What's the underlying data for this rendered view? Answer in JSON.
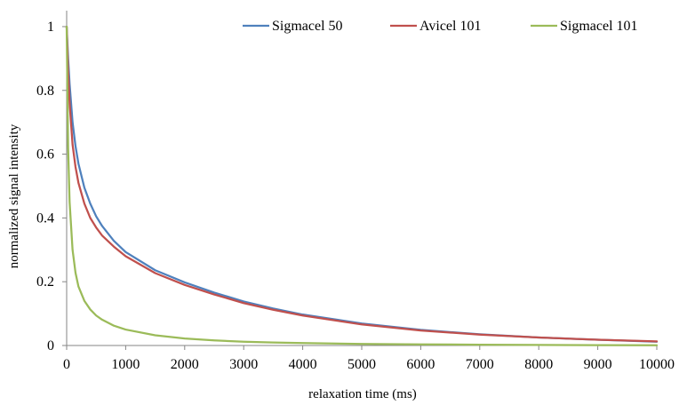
{
  "chart_data": {
    "type": "line",
    "title": "",
    "xlabel": "relaxation time (ms)",
    "ylabel": "normalized signal intensity",
    "xlim": [
      0,
      10000
    ],
    "ylim": [
      0,
      1.05
    ],
    "x_ticks": [
      "0",
      "1000",
      "2000",
      "3000",
      "4000",
      "5000",
      "6000",
      "7000",
      "8000",
      "9000",
      "10000"
    ],
    "y_ticks": [
      "0",
      "0.2",
      "0.4",
      "0.6",
      "0.8",
      "1"
    ],
    "grid": false,
    "legend_position": "top-right",
    "x": [
      0,
      25,
      50,
      100,
      150,
      200,
      300,
      400,
      500,
      600,
      800,
      1000,
      1500,
      2000,
      2500,
      3000,
      3500,
      4000,
      5000,
      6000,
      7000,
      8000,
      9000,
      10000
    ],
    "series": [
      {
        "name": "Sigmacel 50",
        "color": "#4F81BD",
        "values": [
          1.0,
          0.9,
          0.82,
          0.7,
          0.625,
          0.57,
          0.495,
          0.445,
          0.405,
          0.375,
          0.328,
          0.293,
          0.236,
          0.198,
          0.166,
          0.138,
          0.116,
          0.097,
          0.069,
          0.049,
          0.035,
          0.025,
          0.018,
          0.012
        ]
      },
      {
        "name": "Avicel 101",
        "color": "#C0504D",
        "values": [
          1.0,
          0.86,
          0.76,
          0.63,
          0.56,
          0.51,
          0.445,
          0.4,
          0.37,
          0.345,
          0.31,
          0.28,
          0.227,
          0.19,
          0.16,
          0.133,
          0.112,
          0.094,
          0.066,
          0.047,
          0.034,
          0.025,
          0.018,
          0.013
        ]
      },
      {
        "name": "Sigmacel 101",
        "color": "#9BBB59",
        "values": [
          1.0,
          0.62,
          0.45,
          0.3,
          0.228,
          0.185,
          0.14,
          0.113,
          0.094,
          0.081,
          0.062,
          0.05,
          0.032,
          0.022,
          0.016,
          0.012,
          0.0095,
          0.0075,
          0.005,
          0.0035,
          0.0025,
          0.0018,
          0.0012,
          0.0008
        ]
      }
    ]
  }
}
